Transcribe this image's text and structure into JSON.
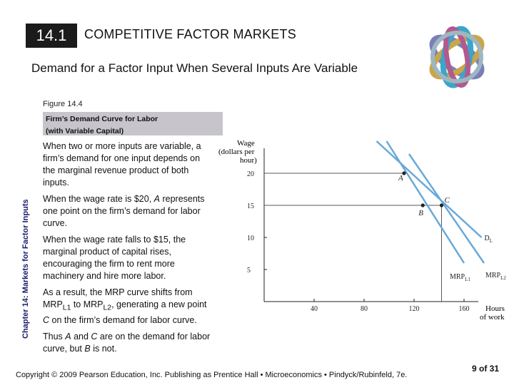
{
  "header": {
    "section_number": "14.1",
    "section_title": "COMPETITIVE FACTOR MARKETS"
  },
  "subtitle": "Demand for a Factor Input When Several Inputs Are Variable",
  "figure": {
    "number": "Figure 14.4",
    "caption_line1": "Firm’s Demand Curve for Labor",
    "caption_line2": "(with Variable Capital)"
  },
  "side_label": "Chapter 14: Markets for Factor Inputs",
  "body": {
    "p1": "When two or more inputs are variable, a firm’s demand for one input depends on the marginal revenue product of both inputs.",
    "p2_a": "When the wage rate is $20, ",
    "p2_em": "A",
    "p2_b": " represents one point on the firm’s demand for labor curve.",
    "p3": "When the wage rate falls to $15, the marginal product of capital rises, encouraging the firm to rent more machinery and hire more labor.",
    "p4_a": "As a result, the MRP curve shifts from MRP",
    "p4_sub1": "L1",
    "p4_b": " to MRP",
    "p4_sub2": "L2",
    "p4_c": ", generating a new point ",
    "p4_em": "C",
    "p4_d": " on the firm’s demand for labor curve.",
    "p5_a": "Thus ",
    "p5_em1": "A",
    "p5_b": " and ",
    "p5_em2": "C",
    "p5_c": " are on the demand for labor curve, but ",
    "p5_em3": "B",
    "p5_d": " is not."
  },
  "chart_data": {
    "type": "line",
    "ylabel_line1": "Wage",
    "ylabel_line2": "(dollars per",
    "ylabel_line3": "hour)",
    "xlabel_line1": "Hours",
    "xlabel_line2": "of work",
    "xlim": [
      0,
      180
    ],
    "ylim": [
      0,
      25
    ],
    "x_ticks": [
      40,
      80,
      120,
      160
    ],
    "y_ticks": [
      5,
      10,
      15,
      20
    ],
    "series": [
      {
        "name": "MRP",
        "sub": "L1",
        "points": [
          [
            98,
            25
          ],
          [
            160,
            6
          ]
        ]
      },
      {
        "name": "MRP",
        "sub": "L2",
        "points": [
          [
            116,
            23
          ],
          [
            176,
            6
          ]
        ]
      },
      {
        "name": "D",
        "sub": "L",
        "points": [
          [
            90,
            25
          ],
          [
            174,
            10
          ]
        ]
      }
    ],
    "points": [
      {
        "label": "A",
        "x": 112,
        "y": 20
      },
      {
        "label": "B",
        "x": 127,
        "y": 15
      },
      {
        "label": "C",
        "x": 142,
        "y": 15
      }
    ],
    "guides": [
      {
        "from": [
          0,
          20
        ],
        "to": [
          112,
          20
        ]
      },
      {
        "from": [
          0,
          15
        ],
        "to": [
          142,
          15
        ]
      },
      {
        "from": [
          142,
          0
        ],
        "to": [
          142,
          15
        ]
      }
    ]
  },
  "footer": {
    "copyright": "Copyright © 2009 Pearson Education, Inc. Publishing as Prentice Hall • Microeconomics • Pindyck/Rubinfeld, 7e.",
    "page": "9 of 31"
  },
  "colors": {
    "curve": "#6aa9d8",
    "guide": "#5a5a5a",
    "caption_box": "#c7c4cb",
    "header_box": "#1b1b1b"
  }
}
